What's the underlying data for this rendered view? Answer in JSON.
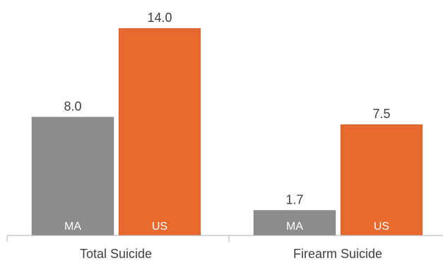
{
  "chart_data": {
    "type": "bar",
    "categories": [
      "Total Suicide",
      "Firearm Suicide"
    ],
    "series": [
      {
        "name": "MA",
        "values": [
          8.0,
          1.7
        ],
        "value_labels": [
          "8.0",
          "1.7"
        ],
        "color": "#8c8c8c"
      },
      {
        "name": "US",
        "values": [
          14.0,
          7.5
        ],
        "value_labels": [
          "14.0",
          "7.5"
        ],
        "color": "#e8692d"
      }
    ],
    "ylim": [
      0,
      14.0
    ],
    "grid": false,
    "legend": "none",
    "bar_labels_inside": true,
    "title": "",
    "xlabel": "",
    "ylabel": ""
  }
}
